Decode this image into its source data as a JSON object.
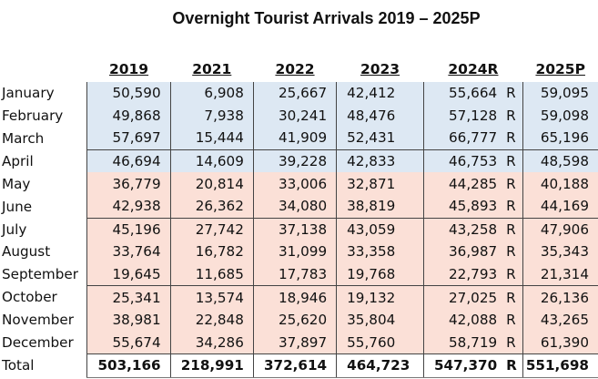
{
  "title": "Overnight Tourist Arrivals 2019 – 2025P",
  "columns": [
    "2019",
    "2021",
    "2022",
    "2023",
    "2024R",
    "2025P"
  ],
  "colors": {
    "q1_fill": "#dde8f3",
    "q2_fill": "#fbe0d7"
  },
  "rows": [
    {
      "month": "January",
      "v2019": "50,590",
      "v2021": "6,908",
      "v2022": "25,667",
      "v2023": "42,412",
      "v2024": "55,664",
      "flag": "R",
      "v2025": "59,095"
    },
    {
      "month": "February",
      "v2019": "49,868",
      "v2021": "7,938",
      "v2022": "30,241",
      "v2023": "48,476",
      "v2024": "57,128",
      "flag": "R",
      "v2025": "59,098"
    },
    {
      "month": "March",
      "v2019": "57,697",
      "v2021": "15,444",
      "v2022": "41,909",
      "v2023": "52,431",
      "v2024": "66,777",
      "flag": "R",
      "v2025": "65,196"
    },
    {
      "month": "April",
      "v2019": "46,694",
      "v2021": "14,609",
      "v2022": "39,228",
      "v2023": "42,833",
      "v2024": "46,753",
      "flag": "R",
      "v2025": "48,598"
    },
    {
      "month": "May",
      "v2019": "36,779",
      "v2021": "20,814",
      "v2022": "33,006",
      "v2023": "32,871",
      "v2024": "44,285",
      "flag": "R",
      "v2025": "40,188"
    },
    {
      "month": "June",
      "v2019": "42,938",
      "v2021": "26,362",
      "v2022": "34,080",
      "v2023": "38,819",
      "v2024": "45,893",
      "flag": "R",
      "v2025": "44,169"
    },
    {
      "month": "July",
      "v2019": "45,196",
      "v2021": "27,742",
      "v2022": "37,138",
      "v2023": "43,059",
      "v2024": "43,258",
      "flag": "R",
      "v2025": "47,906"
    },
    {
      "month": "August",
      "v2019": "33,764",
      "v2021": "16,782",
      "v2022": "31,099",
      "v2023": "33,358",
      "v2024": "36,987",
      "flag": "R",
      "v2025": "35,343"
    },
    {
      "month": "September",
      "v2019": "19,645",
      "v2021": "11,685",
      "v2022": "17,783",
      "v2023": "19,768",
      "v2024": "22,793",
      "flag": "R",
      "v2025": "21,314"
    },
    {
      "month": "October",
      "v2019": "25,341",
      "v2021": "13,574",
      "v2022": "18,946",
      "v2023": "19,132",
      "v2024": "27,025",
      "flag": "R",
      "v2025": "26,136"
    },
    {
      "month": "November",
      "v2019": "38,981",
      "v2021": "22,848",
      "v2022": "25,620",
      "v2023": "35,804",
      "v2024": "42,088",
      "flag": "R",
      "v2025": "43,265"
    },
    {
      "month": "December",
      "v2019": "55,674",
      "v2021": "34,286",
      "v2022": "37,897",
      "v2023": "55,760",
      "v2024": "58,719",
      "flag": "R",
      "v2025": "61,390"
    }
  ],
  "total": {
    "month": "Total",
    "v2019": "503,166",
    "v2021": "218,991",
    "v2022": "372,614",
    "v2023": "464,723",
    "v2024": "547,370",
    "flag": "R",
    "v2025": "551,698"
  }
}
